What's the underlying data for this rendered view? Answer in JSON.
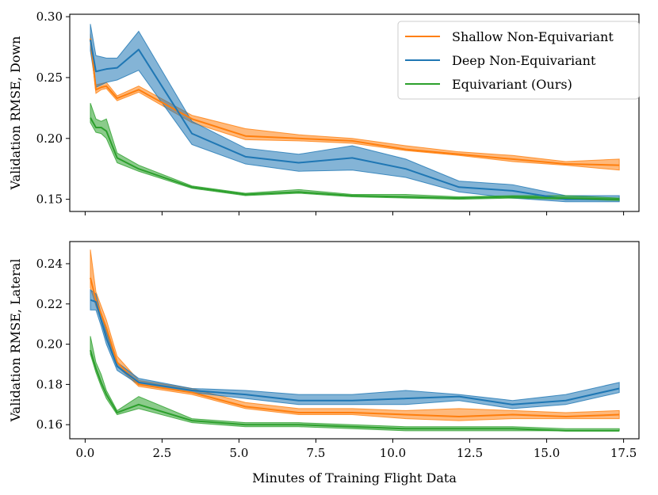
{
  "chart_data": [
    {
      "type": "line",
      "panel": "top",
      "title": "",
      "xlabel": "",
      "ylabel": "Validation RMSE, Down",
      "xlim": [
        -0.5,
        18.0
      ],
      "ylim": [
        0.14,
        0.302
      ],
      "xticks": [
        0.0,
        2.5,
        5.0,
        7.5,
        10.0,
        12.5,
        15.0,
        17.5
      ],
      "yticks": [
        0.15,
        0.2,
        0.25,
        0.3
      ],
      "ytick_labels": [
        "0.15",
        "0.20",
        "0.25",
        "0.30"
      ],
      "x": [
        0.17,
        0.35,
        0.52,
        0.69,
        1.04,
        1.74,
        3.47,
        5.21,
        6.94,
        8.68,
        10.42,
        12.15,
        13.89,
        15.62,
        17.36
      ],
      "series": [
        {
          "name": "Shallow Non-Equivariant",
          "color": "#ff7f0e",
          "values": [
            0.282,
            0.24,
            0.242,
            0.243,
            0.233,
            0.24,
            0.216,
            0.202,
            0.2,
            0.198,
            0.191,
            0.187,
            0.183,
            0.179,
            0.178
          ],
          "lower": [
            0.279,
            0.237,
            0.24,
            0.241,
            0.231,
            0.238,
            0.213,
            0.199,
            0.198,
            0.196,
            0.19,
            0.186,
            0.181,
            0.178,
            0.174
          ],
          "upper": [
            0.286,
            0.244,
            0.245,
            0.246,
            0.235,
            0.243,
            0.219,
            0.208,
            0.203,
            0.2,
            0.194,
            0.189,
            0.186,
            0.181,
            0.183
          ]
        },
        {
          "name": "Deep Non-Equivariant",
          "color": "#1f77b4",
          "values": [
            0.281,
            0.255,
            0.256,
            0.257,
            0.258,
            0.273,
            0.204,
            0.185,
            0.18,
            0.184,
            0.175,
            0.16,
            0.157,
            0.15,
            0.15
          ],
          "lower": [
            0.272,
            0.242,
            0.244,
            0.246,
            0.248,
            0.256,
            0.195,
            0.179,
            0.173,
            0.174,
            0.168,
            0.156,
            0.151,
            0.148,
            0.148
          ],
          "upper": [
            0.294,
            0.268,
            0.267,
            0.266,
            0.266,
            0.288,
            0.214,
            0.192,
            0.187,
            0.194,
            0.183,
            0.165,
            0.162,
            0.153,
            0.153
          ]
        },
        {
          "name": "Equivariant (Ours)",
          "color": "#2ca02c",
          "values": [
            0.217,
            0.209,
            0.209,
            0.206,
            0.184,
            0.175,
            0.16,
            0.154,
            0.156,
            0.153,
            0.152,
            0.151,
            0.152,
            0.151,
            0.15
          ],
          "lower": [
            0.213,
            0.205,
            0.204,
            0.2,
            0.18,
            0.173,
            0.159,
            0.153,
            0.155,
            0.152,
            0.151,
            0.15,
            0.151,
            0.15,
            0.149
          ],
          "upper": [
            0.229,
            0.216,
            0.214,
            0.216,
            0.188,
            0.178,
            0.161,
            0.155,
            0.158,
            0.154,
            0.154,
            0.152,
            0.153,
            0.153,
            0.151
          ]
        }
      ],
      "legend": {
        "location": "upper right",
        "entries": [
          "Shallow Non-Equivariant",
          "Deep Non-Equivariant",
          "Equivariant (Ours)"
        ]
      }
    },
    {
      "type": "line",
      "panel": "bottom",
      "title": "",
      "xlabel": "Minutes of Training Flight Data",
      "ylabel": "Validation RMSE, Lateral",
      "xlim": [
        -0.5,
        18.0
      ],
      "ylim": [
        0.153,
        0.251
      ],
      "xticks": [
        0.0,
        2.5,
        5.0,
        7.5,
        10.0,
        12.5,
        15.0,
        17.5
      ],
      "xtick_labels": [
        "0.0",
        "2.5",
        "5.0",
        "7.5",
        "10.0",
        "12.5",
        "15.0",
        "17.5"
      ],
      "yticks": [
        0.16,
        0.18,
        0.2,
        0.22,
        0.24
      ],
      "ytick_labels": [
        "0.16",
        "0.18",
        "0.20",
        "0.22",
        "0.24"
      ],
      "x": [
        0.17,
        0.35,
        0.52,
        0.69,
        1.04,
        1.74,
        3.47,
        5.21,
        6.94,
        8.68,
        10.42,
        12.15,
        13.89,
        15.62,
        17.36
      ],
      "series": [
        {
          "name": "Shallow Non-Equivariant",
          "color": "#ff7f0e",
          "values": [
            0.233,
            0.222,
            0.215,
            0.208,
            0.191,
            0.18,
            0.176,
            0.169,
            0.166,
            0.166,
            0.165,
            0.164,
            0.165,
            0.164,
            0.165
          ],
          "lower": [
            0.228,
            0.219,
            0.212,
            0.205,
            0.189,
            0.179,
            0.175,
            0.168,
            0.165,
            0.165,
            0.163,
            0.162,
            0.163,
            0.163,
            0.163
          ],
          "upper": [
            0.247,
            0.226,
            0.219,
            0.212,
            0.194,
            0.182,
            0.178,
            0.171,
            0.168,
            0.168,
            0.167,
            0.168,
            0.167,
            0.166,
            0.167
          ]
        },
        {
          "name": "Deep Non-Equivariant",
          "color": "#1f77b4",
          "values": [
            0.222,
            0.221,
            0.212,
            0.203,
            0.189,
            0.181,
            0.177,
            0.175,
            0.172,
            0.172,
            0.173,
            0.174,
            0.17,
            0.172,
            0.178
          ],
          "lower": [
            0.217,
            0.217,
            0.209,
            0.2,
            0.187,
            0.18,
            0.176,
            0.173,
            0.17,
            0.17,
            0.17,
            0.172,
            0.168,
            0.17,
            0.176
          ],
          "upper": [
            0.227,
            0.225,
            0.215,
            0.206,
            0.191,
            0.183,
            0.178,
            0.177,
            0.175,
            0.175,
            0.177,
            0.175,
            0.172,
            0.175,
            0.181
          ]
        },
        {
          "name": "Equivariant (Ours)",
          "color": "#2ca02c",
          "values": [
            0.197,
            0.188,
            0.181,
            0.175,
            0.166,
            0.17,
            0.162,
            0.16,
            0.16,
            0.159,
            0.158,
            0.158,
            0.158,
            0.157,
            0.157
          ],
          "lower": [
            0.195,
            0.186,
            0.179,
            0.173,
            0.165,
            0.168,
            0.161,
            0.159,
            0.159,
            0.158,
            0.157,
            0.157,
            0.157,
            0.157,
            0.157
          ],
          "upper": [
            0.204,
            0.191,
            0.185,
            0.177,
            0.167,
            0.174,
            0.163,
            0.161,
            0.161,
            0.16,
            0.159,
            0.159,
            0.159,
            0.158,
            0.158
          ]
        }
      ]
    }
  ]
}
